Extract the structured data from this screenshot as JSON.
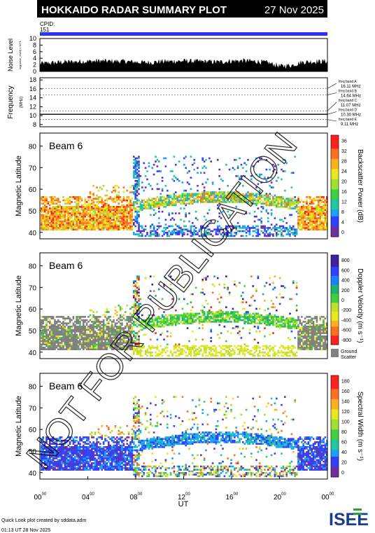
{
  "header": {
    "title": "HOKKAIDO RADAR SUMMARY PLOT",
    "date": "27 Nov 2025",
    "cpid_label": "CPID:",
    "cpid_value": "151"
  },
  "footer": {
    "credit": "Quick Look plot created by sddata.adm",
    "timestamp": "01:13 UT 28 Nov 2025",
    "logo": "ISEE"
  },
  "watermark": "NOT FOR PUBLICATION",
  "colors": {
    "accent": "#3030ff",
    "ground_scatter": "#808080"
  },
  "chart_data": [
    {
      "type": "area",
      "name": "noise",
      "ylabel": "Noise Level",
      "ylabel_sub": "log(noise_level) x 10^1",
      "yticks": [
        "10",
        "8",
        "6",
        "4",
        "2",
        "0"
      ],
      "ylim": [
        0,
        10
      ],
      "x_ut": [
        0,
        1,
        2,
        3,
        4,
        5,
        6,
        7,
        8,
        9,
        10,
        11,
        12,
        13,
        14,
        15,
        16,
        17,
        18,
        19,
        20,
        21,
        22,
        23,
        24
      ],
      "values": [
        2.3,
        2.5,
        2.8,
        2.9,
        3.0,
        3.1,
        3.0,
        3.0,
        2.8,
        2.6,
        2.9,
        3.0,
        3.1,
        3.0,
        2.9,
        2.8,
        3.1,
        3.2,
        3.0,
        2.6,
        1.5,
        1.8,
        2.8,
        2.9,
        3.0
      ]
    },
    {
      "type": "line",
      "name": "frequency",
      "ylabel": "Frequency",
      "yunit": "(MHz)",
      "yticks": [
        "18",
        "16",
        "14",
        "12",
        "10",
        "8"
      ],
      "ylim": [
        7.5,
        18.5
      ],
      "bands": [
        {
          "name": "freq band A",
          "value": "16.11 MHz"
        },
        {
          "name": "freq band B",
          "value": "14.64 MHz"
        },
        {
          "name": "freq band C",
          "value": "11.07 MHz"
        },
        {
          "name": "freq band D",
          "value": "10.30 MHz"
        },
        {
          "name": "freq band E",
          "value": "9.11 MHz"
        }
      ],
      "band_mhz": [
        16.11,
        14.64,
        11.07,
        10.3,
        9.11
      ],
      "operating_mhz": 10.3
    },
    {
      "type": "heatmap",
      "name": "power",
      "beam_label": "Beam  6",
      "ylabel": "Magnetic Latitude",
      "yticks": [
        "80",
        "70",
        "60",
        "50",
        "40"
      ],
      "ylim": [
        37,
        86
      ],
      "colorbar_label": "Backscatter Power (dB)",
      "colorbar_ticks": [
        "36",
        "32",
        "28",
        "24",
        "20",
        "16",
        "12",
        "8",
        "4",
        "0"
      ],
      "range": [
        0,
        38
      ]
    },
    {
      "type": "heatmap",
      "name": "velocity",
      "beam_label": "Beam  6",
      "ylabel": "Magnetic Latitude",
      "yticks": [
        "80",
        "70",
        "60",
        "50",
        "40"
      ],
      "ylim": [
        37,
        86
      ],
      "colorbar_label": "Doppler Velocity (m s⁻¹)",
      "colorbar_ticks": [
        "800",
        "600",
        "400",
        "200",
        "0",
        "-200",
        "-400",
        "-600",
        "-800"
      ],
      "range": [
        -900,
        900
      ],
      "ground_scatter_label": "Ground",
      "ground_scatter_label2": "Scatter"
    },
    {
      "type": "heatmap",
      "name": "width",
      "beam_label": "Beam  6",
      "ylabel": "Magnetic Latitude",
      "yticks": [
        "80",
        "70",
        "60",
        "50",
        "40"
      ],
      "ylim": [
        37,
        86
      ],
      "colorbar_label": "Spectral Width (m s⁻¹)",
      "colorbar_ticks": [
        "180",
        "160",
        "140",
        "120",
        "100",
        "80",
        "60",
        "40",
        "20",
        "0"
      ],
      "range": [
        0,
        190
      ],
      "xlabel": "UT",
      "xticks": [
        "00",
        "04",
        "08",
        "12",
        "16",
        "20",
        "00"
      ],
      "xtick_sup": "00",
      "xlim": [
        0,
        24
      ]
    }
  ]
}
